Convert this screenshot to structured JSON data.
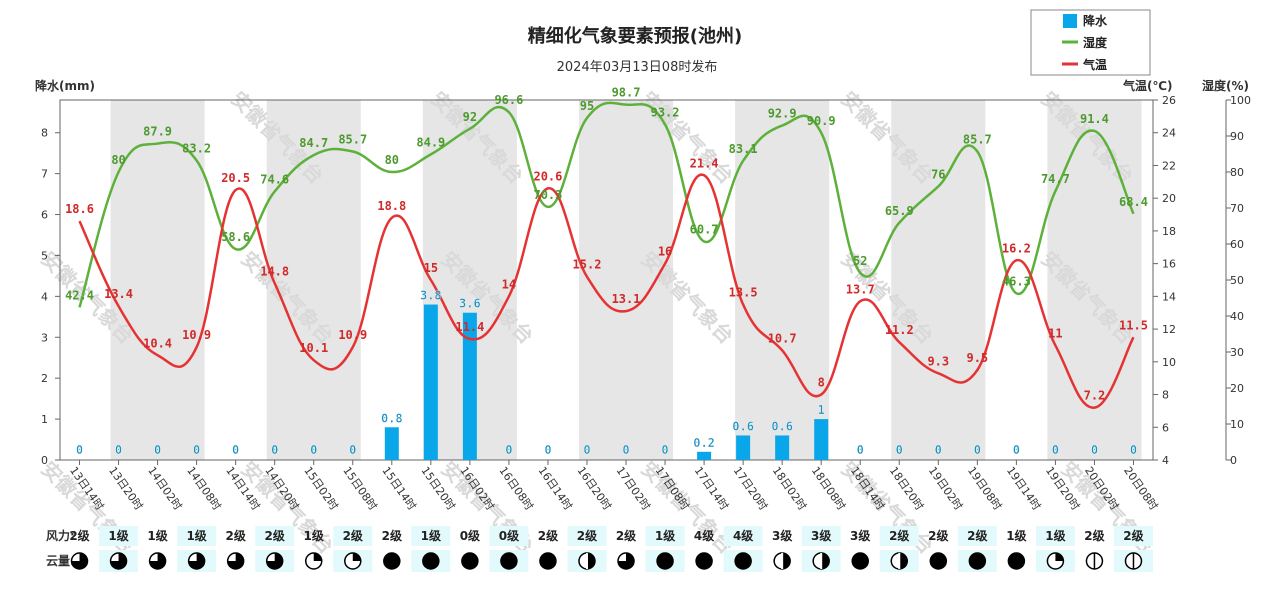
{
  "title": "精细化气象要素预报(池州)",
  "subtitle": "2024年03月13日08时发布",
  "watermark": "安徽省气象台",
  "legend": {
    "precip": "降水",
    "humidity": "湿度",
    "temperature": "气温"
  },
  "axes": {
    "left_title": "降水(mm)",
    "right1_title": "气温(℃)",
    "right2_title": "湿度(%)"
  },
  "colors": {
    "precip": "#0aa6ea",
    "humidity": "#5db13b",
    "temperature": "#e53333",
    "band": "#e6e6e6",
    "row_bg": "#e3fafd"
  },
  "rows": {
    "wind_label": "风力:",
    "cloud_label": "云量:"
  },
  "chart_data": {
    "type": "bar+line",
    "categories": [
      "13日14时",
      "13日20时",
      "14日02时",
      "14日08时",
      "14日14时",
      "14日20时",
      "15日02时",
      "15日08时",
      "15日14时",
      "15日20时",
      "16日02时",
      "16日08时",
      "16日14时",
      "16日20时",
      "17日02时",
      "17日08时",
      "17日14时",
      "17日20时",
      "18日02时",
      "18日08时",
      "18日14时",
      "18日20时",
      "19日02时",
      "19日08时",
      "19日14时",
      "19日20时",
      "20日02时",
      "20日08时"
    ],
    "precip_axis": {
      "min": 0,
      "max": 8.8,
      "ticks": [
        0,
        1,
        2,
        3,
        4,
        5,
        6,
        7,
        8
      ]
    },
    "temp_axis": {
      "min": 4,
      "max": 26,
      "ticks": [
        4,
        6,
        8,
        10,
        12,
        14,
        16,
        18,
        20,
        22,
        24,
        26
      ]
    },
    "humidity_axis": {
      "min": 0,
      "max": 100,
      "ticks": [
        0,
        10,
        20,
        30,
        40,
        50,
        60,
        70,
        80,
        90,
        100
      ]
    },
    "series": [
      {
        "name": "降水",
        "type": "bar",
        "values": [
          0,
          0,
          0,
          0,
          0,
          0,
          0,
          0,
          0.8,
          3.8,
          3.6,
          0,
          0,
          0,
          0,
          0,
          0.2,
          0.6,
          0.6,
          1,
          0,
          0,
          0,
          0,
          0,
          0,
          0,
          0
        ],
        "labels": [
          "0",
          "0",
          "0",
          "0",
          "0",
          "0",
          "0",
          "0",
          "0.8",
          "3.8",
          "3.6",
          "0",
          "0",
          "0",
          "0",
          "0",
          "0.2",
          "0.6",
          "0.6",
          "1",
          "0",
          "0",
          "0",
          "0",
          "0",
          "0",
          "0",
          "0"
        ]
      },
      {
        "name": "湿度",
        "type": "line",
        "values": [
          42.4,
          80,
          87.9,
          83.2,
          58.6,
          74.6,
          84.7,
          85.7,
          80,
          84.9,
          92,
          96.6,
          70.3,
          95,
          98.7,
          93.2,
          60.7,
          83.1,
          92.9,
          90.9,
          52,
          65.9,
          76,
          85.7,
          46.3,
          74.7,
          91.4,
          68.4
        ],
        "labels": [
          "42.4",
          "80",
          "87.9",
          "83.2",
          "58.6",
          "74.6",
          "84.7",
          "85.7",
          "80",
          "84.9",
          "92",
          "96.6",
          "70.3",
          "95",
          "98.7",
          "93.2",
          "60.7",
          "83.1",
          "92.9",
          "90.9",
          "52",
          "65.9",
          "76",
          "85.7",
          "46.3",
          "74.7",
          "91.4",
          "68.4"
        ]
      },
      {
        "name": "气温",
        "type": "line",
        "values": [
          18.6,
          13.4,
          10.4,
          10.9,
          20.5,
          14.8,
          10.1,
          10.9,
          18.8,
          15,
          11.4,
          14,
          20.6,
          15.2,
          13.1,
          16,
          21.4,
          13.5,
          10.7,
          8,
          13.7,
          11.2,
          9.3,
          9.5,
          16.2,
          11,
          7.2,
          11.5
        ],
        "labels": [
          "18.6",
          "13.4",
          "10.4",
          "10.9",
          "20.5",
          "14.8",
          "10.1",
          "10.9",
          "18.8",
          "15",
          "11.4",
          "14",
          "20.6",
          "15.2",
          "13.1",
          "16",
          "21.4",
          "13.5",
          "10.7",
          "8",
          "13.7",
          "11.2",
          "9.3",
          "9.5",
          "16.2",
          "11",
          "7.2",
          "11.5"
        ]
      }
    ],
    "wind": [
      "2级",
      "1级",
      "1级",
      "1级",
      "2级",
      "2级",
      "1级",
      "2级",
      "2级",
      "1级",
      "0级",
      "0级",
      "2级",
      "2级",
      "2级",
      "1级",
      "4级",
      "4级",
      "3级",
      "3级",
      "3级",
      "2级",
      "2级",
      "2级",
      "1级",
      "1级",
      "2级",
      "2级"
    ],
    "cloud": [
      "3/4",
      "3/4",
      "3/4",
      "3/4",
      "3/4",
      "3/4",
      "1/4",
      "1/4",
      "full",
      "full",
      "full",
      "full",
      "full",
      "half",
      "3/4",
      "full",
      "full",
      "full",
      "half",
      "half",
      "full",
      "half",
      "full",
      "full",
      "full",
      "1/4",
      "obscured",
      "obscured"
    ]
  }
}
